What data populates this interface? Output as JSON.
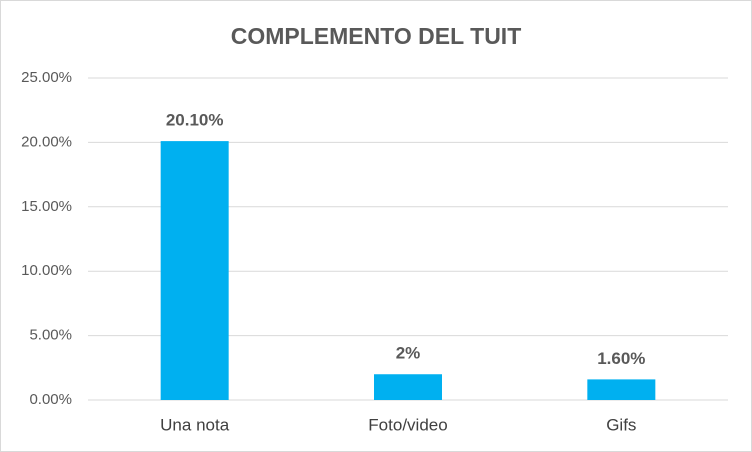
{
  "chart_data": {
    "type": "bar",
    "title": "COMPLEMENTO DEL TUIT",
    "categories": [
      "Una nota",
      "Foto/video",
      "Gifs"
    ],
    "values": [
      20.1,
      2,
      1.6
    ],
    "value_labels": [
      "20.10%",
      "2%",
      "1.60%"
    ],
    "color": "#00b0f0",
    "ylim": [
      0,
      25
    ],
    "yticks": [
      {
        "value": 0,
        "label": "0.00%"
      },
      {
        "value": 5,
        "label": "5.00%"
      },
      {
        "value": 10,
        "label": "10.00%"
      },
      {
        "value": 15,
        "label": "15.00%"
      },
      {
        "value": 20,
        "label": "20.00%"
      },
      {
        "value": 25,
        "label": "25.00%"
      }
    ],
    "grid": true
  }
}
